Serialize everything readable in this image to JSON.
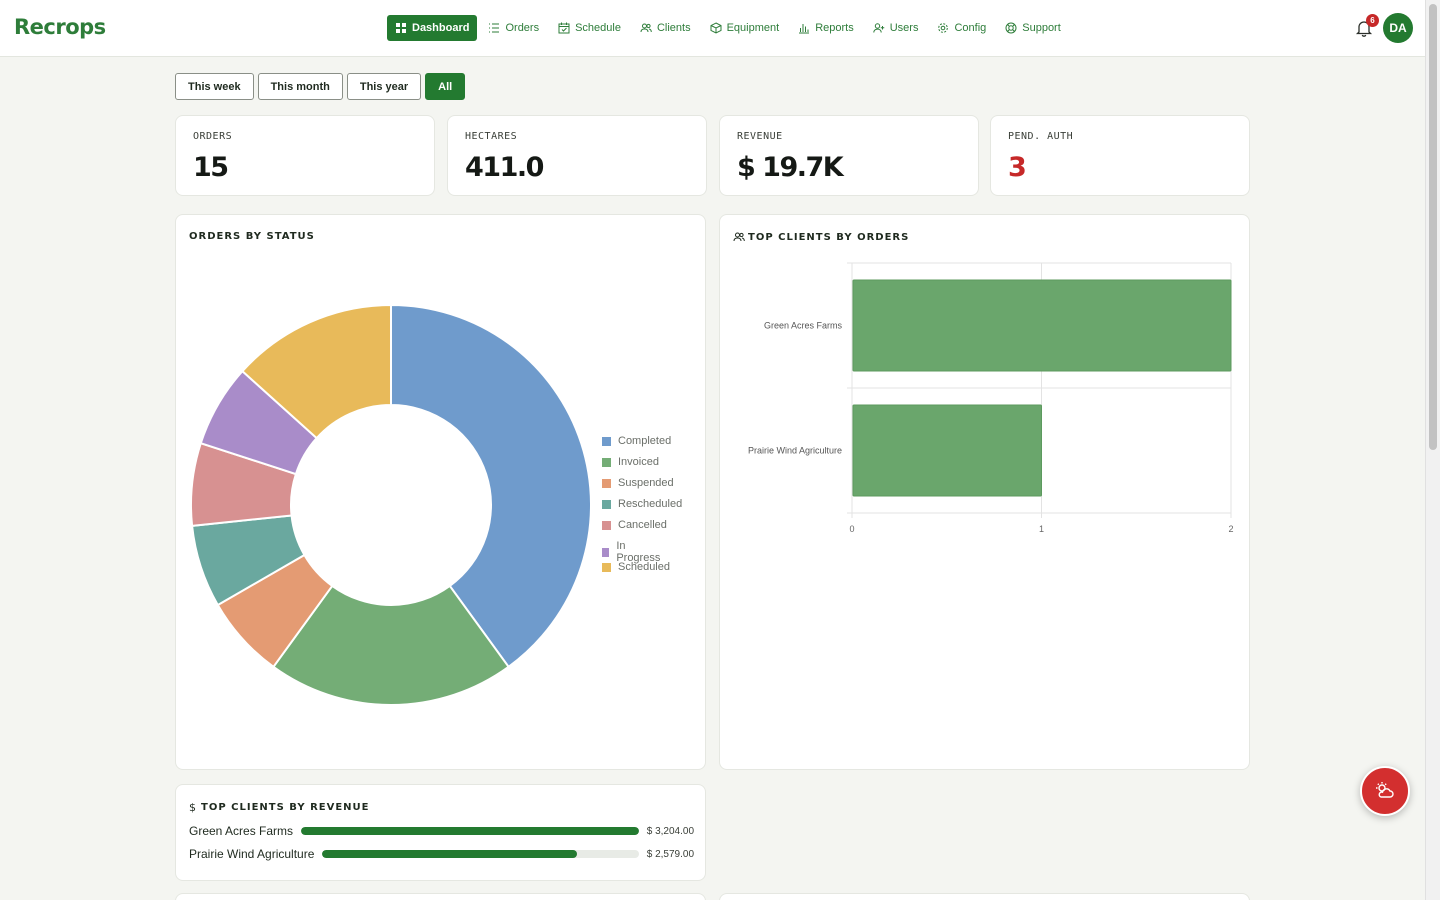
{
  "app": {
    "name": "Recrops"
  },
  "nav": [
    {
      "label": "Dashboard",
      "icon": "grid-icon",
      "active": true
    },
    {
      "label": "Orders",
      "icon": "list-icon"
    },
    {
      "label": "Schedule",
      "icon": "calendar-icon"
    },
    {
      "label": "Clients",
      "icon": "users-icon"
    },
    {
      "label": "Equipment",
      "icon": "package-icon"
    },
    {
      "label": "Reports",
      "icon": "bar-chart-icon"
    },
    {
      "label": "Users",
      "icon": "user-plus-icon"
    },
    {
      "label": "Config",
      "icon": "gear-icon"
    },
    {
      "label": "Support",
      "icon": "lifebuoy-icon"
    }
  ],
  "header": {
    "notification_count": "6",
    "avatar_initials": "DA"
  },
  "filters": [
    {
      "label": "This week"
    },
    {
      "label": "This month"
    },
    {
      "label": "This year"
    },
    {
      "label": "All",
      "active": true
    }
  ],
  "kpis": [
    {
      "label": "ORDERS",
      "value": "15"
    },
    {
      "label": "HECTARES",
      "value": "411.0"
    },
    {
      "label": "REVENUE",
      "value": "$ 19.7K"
    },
    {
      "label": "PEND. AUTH",
      "value": "3",
      "alert": true
    }
  ],
  "orders_by_status": {
    "title": "ORDERS BY STATUS"
  },
  "top_clients_orders": {
    "title": "TOP CLIENTS BY ORDERS"
  },
  "top_clients_revenue": {
    "title": "TOP CLIENTS BY REVENUE",
    "rows": [
      {
        "name": "Green Acres Farms",
        "amount": "$ 3,204.00",
        "fraction": 1.0
      },
      {
        "name": "Prairie Wind Agriculture",
        "amount": "$ 2,579.00",
        "fraction": 0.805
      }
    ]
  },
  "colors": {
    "brand": "#237a30",
    "alert": "#c62828",
    "bar": "#6aa66c"
  },
  "chart_data": [
    {
      "type": "pie",
      "title": "ORDERS BY STATUS",
      "donut": true,
      "legend": "right",
      "categories": [
        "Completed",
        "Invoiced",
        "Suspended",
        "Rescheduled",
        "Cancelled",
        "In Progress",
        "Scheduled"
      ],
      "values": [
        6,
        3,
        1,
        1,
        1,
        1,
        2
      ],
      "colors": [
        "#6f9bcc",
        "#74ad76",
        "#e49b73",
        "#6aa89f",
        "#d79191",
        "#a98cc9",
        "#e8ba5a"
      ]
    },
    {
      "type": "bar",
      "orientation": "horizontal",
      "title": "TOP CLIENTS BY ORDERS",
      "categories": [
        "Green Acres Farms",
        "Prairie Wind Agriculture"
      ],
      "values": [
        2,
        1
      ],
      "xlim": [
        0,
        2
      ],
      "xticks": [
        "0",
        "1",
        "2"
      ],
      "grid": true
    }
  ]
}
